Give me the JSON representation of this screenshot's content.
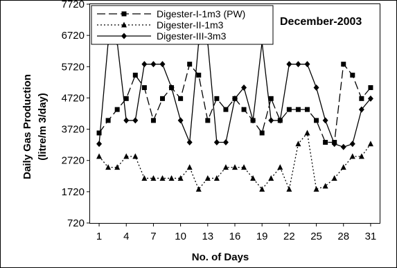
{
  "chart_data": {
    "type": "line",
    "title": "December-2003",
    "xlabel": "No. of Days",
    "ylabel_line1": "Daily Gas Production",
    "ylabel_line2": "(litre/m 3/day)",
    "xlim": [
      0,
      32
    ],
    "ylim": [
      720,
      7720
    ],
    "x_ticks": [
      1,
      4,
      7,
      10,
      13,
      16,
      19,
      22,
      25,
      28,
      31
    ],
    "y_ticks": [
      720,
      1720,
      2720,
      3720,
      4720,
      5720,
      6720,
      7720
    ],
    "grid": false,
    "legend_position": "top-left",
    "x": [
      1,
      2,
      3,
      4,
      5,
      6,
      7,
      8,
      9,
      10,
      11,
      12,
      13,
      14,
      15,
      16,
      17,
      18,
      19,
      20,
      21,
      22,
      23,
      24,
      25,
      26,
      27,
      28,
      29,
      30,
      31
    ],
    "series": [
      {
        "name": "Digester-I-1m3 (PW)",
        "line_style": "dashed",
        "marker": "square",
        "values": [
          3600,
          4000,
          4350,
          4700,
          5450,
          5050,
          4000,
          4700,
          5050,
          4700,
          5800,
          5450,
          4000,
          4700,
          4350,
          4700,
          4350,
          4000,
          3600,
          4700,
          4000,
          4350,
          4350,
          4350,
          4000,
          3300,
          3300,
          5800,
          5450,
          4700,
          5050
        ]
      },
      {
        "name": "Digester-II-1m3",
        "line_style": "dotted",
        "marker": "triangle",
        "values": [
          2850,
          2500,
          2500,
          2850,
          2850,
          2150,
          2150,
          2150,
          2150,
          2150,
          2500,
          1800,
          2150,
          2150,
          2500,
          2500,
          2500,
          2150,
          1800,
          2150,
          2500,
          1800,
          3250,
          3600,
          1800,
          1900,
          2150,
          2500,
          2850,
          2850,
          3250
        ]
      },
      {
        "name": "Digester-III-3m3",
        "line_style": "solid",
        "marker": "diamond",
        "values": [
          3250,
          6500,
          6500,
          4000,
          4000,
          5800,
          5800,
          5800,
          5050,
          4000,
          3300,
          6500,
          6500,
          3300,
          3300,
          4700,
          5050,
          4000,
          6500,
          4000,
          4000,
          5800,
          5800,
          5800,
          5050,
          4000,
          3250,
          3150,
          3250,
          4350,
          4700
        ]
      }
    ]
  }
}
